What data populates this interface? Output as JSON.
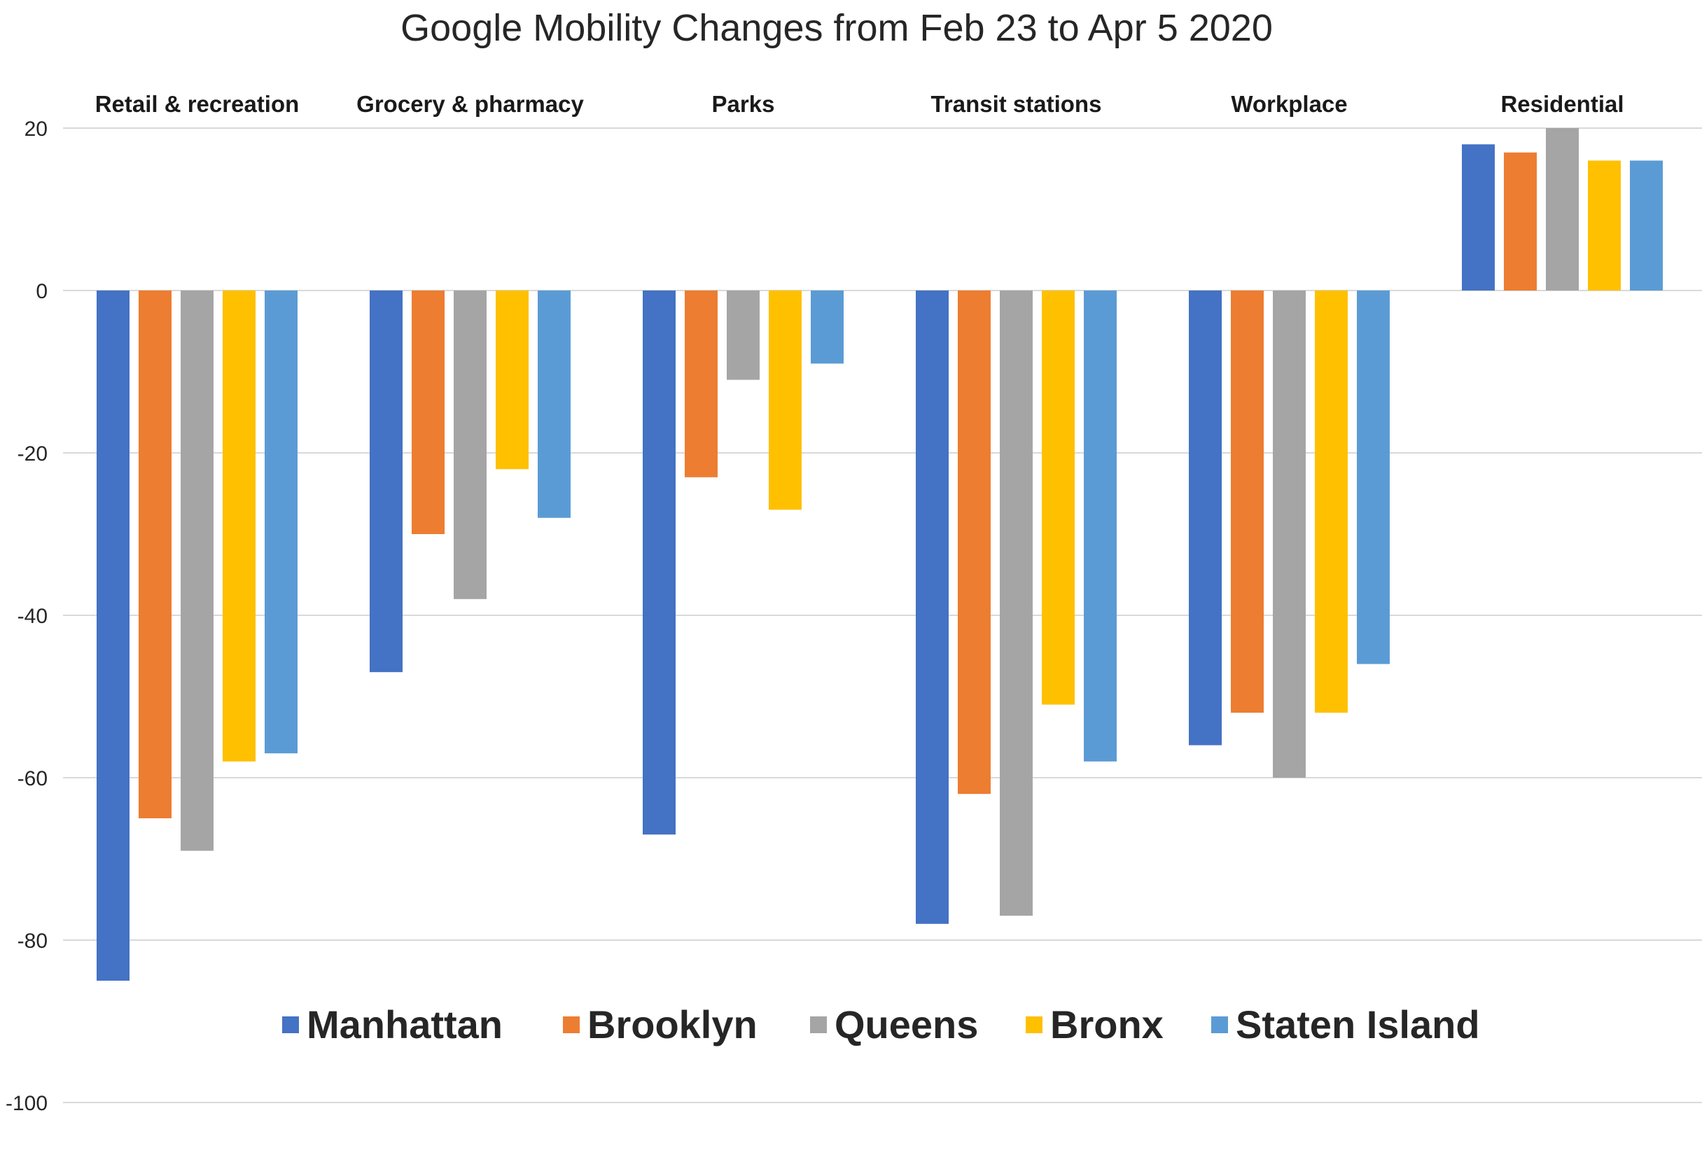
{
  "chart_data": {
    "type": "bar",
    "title": "Google Mobility Changes from Feb 23 to Apr 5 2020",
    "xlabel": "",
    "ylabel": "",
    "ylim": [
      -100,
      20
    ],
    "yticks": [
      20,
      0,
      -20,
      -40,
      -60,
      -80,
      -100
    ],
    "grid": true,
    "legend_position": "bottom-inside",
    "categories": [
      "Retail & recreation",
      "Grocery & pharmacy",
      "Parks",
      "Transit stations",
      "Workplace",
      "Residential"
    ],
    "series": [
      {
        "name": "Manhattan",
        "color": "#4472C4",
        "values": [
          -85,
          -47,
          -67,
          -78,
          -56,
          18
        ]
      },
      {
        "name": "Brooklyn",
        "color": "#ED7D31",
        "values": [
          -65,
          -30,
          -23,
          -62,
          -52,
          17
        ]
      },
      {
        "name": "Queens",
        "color": "#A5A5A5",
        "values": [
          -69,
          -38,
          -11,
          -77,
          -60,
          20
        ]
      },
      {
        "name": "Bronx",
        "color": "#FFC000",
        "values": [
          -58,
          -22,
          -27,
          -51,
          -52,
          16
        ]
      },
      {
        "name": "Staten Island",
        "color": "#5B9BD5",
        "values": [
          -57,
          -28,
          -9,
          -58,
          -46,
          16
        ]
      }
    ]
  }
}
